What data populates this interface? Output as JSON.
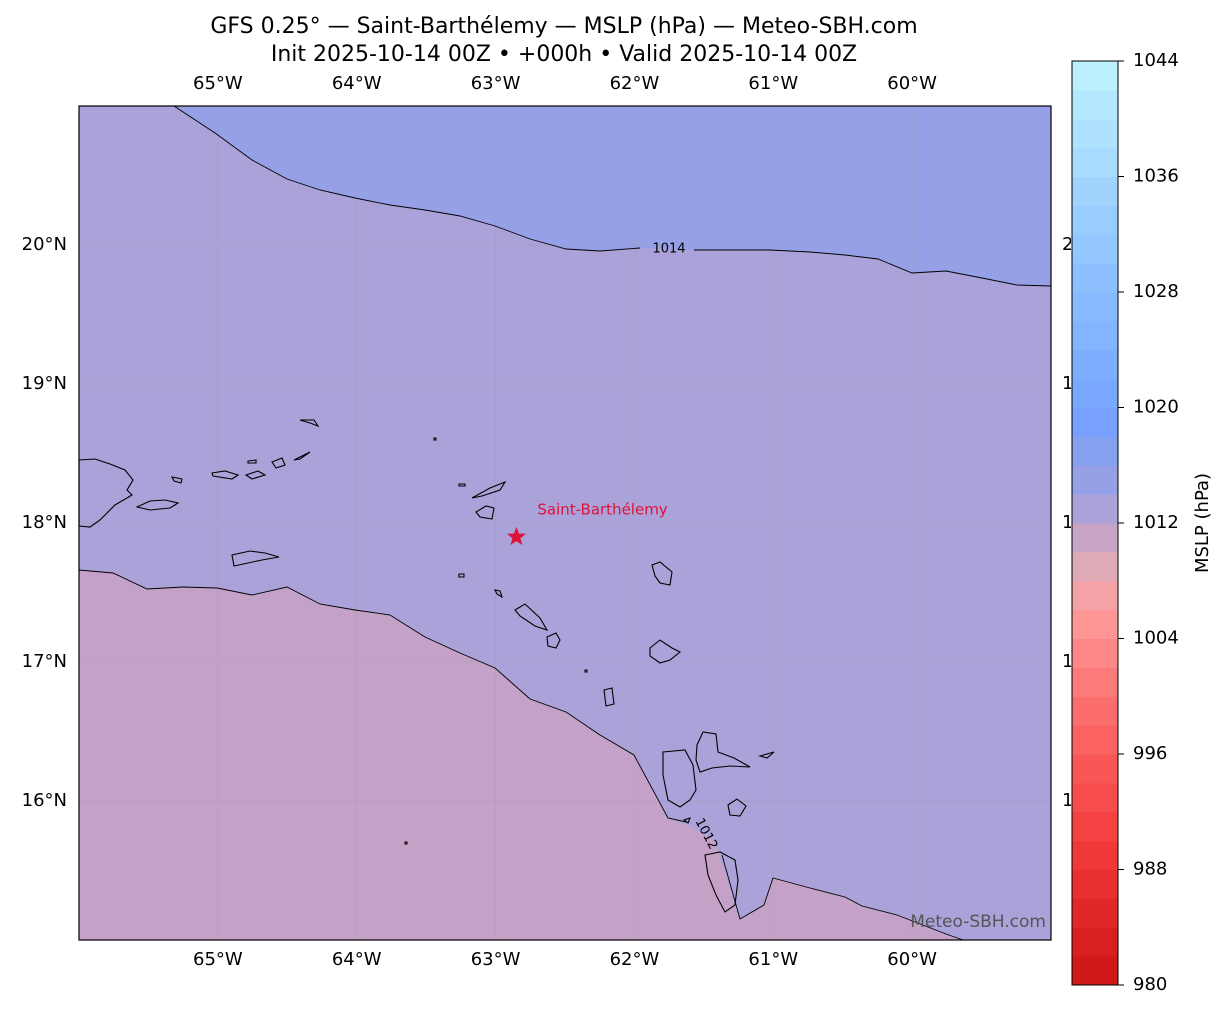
{
  "map": {
    "title": "GFS 0.25° — Saint-Barthélemy — MSLP (hPa) — Meteo-SBH.com",
    "subtitle": "Init 2025-10-14 00Z • +000h • Valid 2025-10-14 00Z",
    "xlim": [
      -66,
      -59
    ],
    "ylim": [
      15,
      21
    ],
    "xticks": [
      {
        "value": -65,
        "label": "65°W"
      },
      {
        "value": -64,
        "label": "64°W"
      },
      {
        "value": -63,
        "label": "63°W"
      },
      {
        "value": -62,
        "label": "62°W"
      },
      {
        "value": -61,
        "label": "61°W"
      },
      {
        "value": -60,
        "label": "60°W"
      }
    ],
    "yticks": [
      {
        "value": 20,
        "label": "20°N"
      },
      {
        "value": 19,
        "label": "19°N"
      },
      {
        "value": 18,
        "label": "18°N"
      },
      {
        "value": 17,
        "label": "17°N"
      },
      {
        "value": 16,
        "label": "16°N"
      }
    ],
    "contour_labels": [
      1014,
      1012
    ],
    "marker": {
      "label": "Saint-Barthélemy",
      "lon": -62.85,
      "lat": 17.9,
      "color": "#dc143c"
    },
    "watermark": "Meteo-SBH.com",
    "colorbar": {
      "label": "MSLP (hPa)",
      "lim": [
        980,
        1044
      ],
      "ticks": [
        980,
        988,
        996,
        1004,
        1012,
        1020,
        1028,
        1036,
        1044
      ],
      "colors": [
        "#d01818",
        "#da1f1f",
        "#e22727",
        "#ea2f2f",
        "#f03838",
        "#f44242",
        "#f74c4c",
        "#f95656",
        "#fb6262",
        "#fc6e6e",
        "#fd7a7a",
        "#fe8888",
        "#ff9696",
        "#f4a2a6",
        "#deaab6",
        "#c8a4c6",
        "#aaa2d8",
        "#96a0e6",
        "#86a0f0",
        "#78a0ff",
        "#7aa8ff",
        "#7eaeff",
        "#82b4ff",
        "#88baff",
        "#8ec0ff",
        "#94c6ff",
        "#9acdff",
        "#a0d4ff",
        "#a8dcff",
        "#aee2ff",
        "#b4e8ff",
        "#bcf0ff"
      ]
    }
  }
}
